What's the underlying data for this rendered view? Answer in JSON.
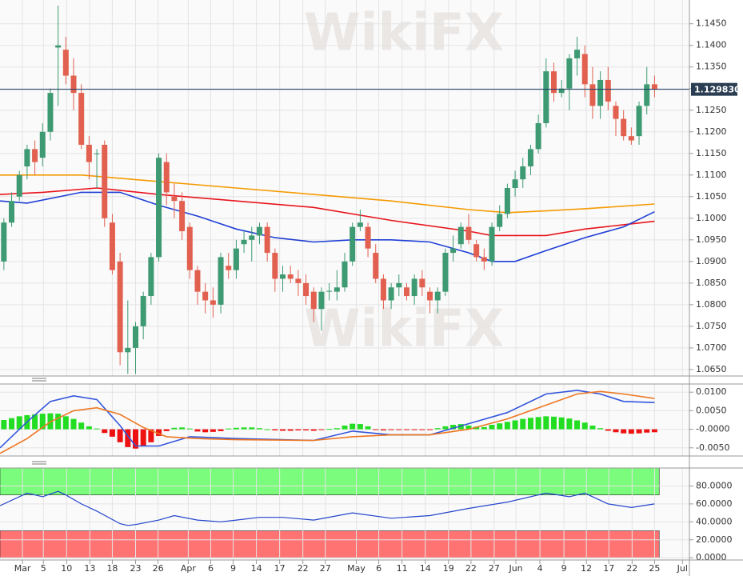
{
  "watermark": "WikiFX",
  "chart_data": [
    {
      "type": "candlestick",
      "xlim": [
        -0.5,
        88.5
      ],
      "ylim": [
        1.0635,
        1.1505
      ],
      "grid": true,
      "up_color": "#3d9a72",
      "down_color": "#e2604f",
      "yticks": [
        {
          "value": 1.065,
          "label": "1.0650"
        },
        {
          "value": 1.07,
          "label": "1.0700"
        },
        {
          "value": 1.075,
          "label": "1.0750"
        },
        {
          "value": 1.08,
          "label": "1.0800"
        },
        {
          "value": 1.085,
          "label": "1.0850"
        },
        {
          "value": 1.09,
          "label": "1.0900"
        },
        {
          "value": 1.095,
          "label": "1.0950"
        },
        {
          "value": 1.1,
          "label": "1.1000"
        },
        {
          "value": 1.105,
          "label": "1.1050"
        },
        {
          "value": 1.11,
          "label": "1.1100"
        },
        {
          "value": 1.115,
          "label": "1.1150"
        },
        {
          "value": 1.12,
          "label": "1.1200"
        },
        {
          "value": 1.125,
          "label": "1.1250"
        },
        {
          "value": 1.13,
          "label": "1.1300"
        },
        {
          "value": 1.135,
          "label": "1.1350"
        },
        {
          "value": 1.14,
          "label": "1.1400"
        },
        {
          "value": 1.145,
          "label": "1.1450"
        }
      ],
      "last_price": {
        "value": 1.12983,
        "label": "1.129830"
      },
      "open": [
        1.09,
        1.099,
        1.105,
        1.112,
        1.116,
        1.114,
        1.12,
        1.1395,
        1.139,
        1.133,
        1.129,
        1.117,
        1.115,
        1.117,
        1.099,
        1.09,
        1.069,
        1.07,
        1.075,
        1.082,
        1.091,
        1.113,
        1.105,
        1.104,
        1.098,
        1.088,
        1.083,
        1.081,
        1.08,
        1.089,
        1.088,
        1.094,
        1.095,
        1.096,
        1.098,
        1.092,
        1.086,
        1.087,
        1.086,
        1.085,
        1.083,
        1.079,
        1.083,
        1.083,
        1.084,
        1.09,
        1.098,
        1.098,
        1.092,
        1.086,
        1.081,
        1.084,
        1.084,
        1.082,
        1.086,
        1.083,
        1.081,
        1.083,
        1.092,
        1.094,
        1.098,
        1.094,
        1.091,
        1.09,
        1.098,
        1.101,
        1.107,
        1.109,
        1.112,
        1.116,
        1.122,
        1.134,
        1.129,
        1.13,
        1.137,
        1.138,
        1.131,
        1.126,
        1.132,
        1.126,
        1.123,
        1.119,
        1.119,
        1.126,
        1.131
      ],
      "high": [
        1.1,
        1.106,
        1.111,
        1.117,
        1.118,
        1.122,
        1.13,
        1.1492,
        1.142,
        1.137,
        1.131,
        1.119,
        1.116,
        1.118,
        1.101,
        1.092,
        1.081,
        1.076,
        1.083,
        1.092,
        1.115,
        1.115,
        1.108,
        1.106,
        1.099,
        1.089,
        1.085,
        1.084,
        1.092,
        1.092,
        1.095,
        1.097,
        1.098,
        1.099,
        1.099,
        1.093,
        1.089,
        1.089,
        1.088,
        1.087,
        1.084,
        1.084,
        1.085,
        1.088,
        1.092,
        1.099,
        1.102,
        1.099,
        1.094,
        1.087,
        1.085,
        1.087,
        1.085,
        1.087,
        1.088,
        1.084,
        1.084,
        1.093,
        1.096,
        1.099,
        1.101,
        1.095,
        1.093,
        1.099,
        1.103,
        1.108,
        1.111,
        1.114,
        1.117,
        1.124,
        1.137,
        1.136,
        1.132,
        1.138,
        1.142,
        1.14,
        1.135,
        1.134,
        1.135,
        1.127,
        1.125,
        1.121,
        1.127,
        1.135,
        1.133
      ],
      "low": [
        1.088,
        1.098,
        1.104,
        1.109,
        1.11,
        1.112,
        1.118,
        1.126,
        1.131,
        1.125,
        1.116,
        1.109,
        1.107,
        1.098,
        1.087,
        1.066,
        1.064,
        1.064,
        1.072,
        1.08,
        1.09,
        1.103,
        1.1,
        1.095,
        1.086,
        1.08,
        1.078,
        1.077,
        1.078,
        1.086,
        1.086,
        1.092,
        1.09,
        1.094,
        1.09,
        1.083,
        1.083,
        1.085,
        1.082,
        1.08,
        1.076,
        1.074,
        1.081,
        1.081,
        1.083,
        1.089,
        1.097,
        1.091,
        1.085,
        1.079,
        1.079,
        1.082,
        1.081,
        1.08,
        1.082,
        1.078,
        1.078,
        1.082,
        1.09,
        1.093,
        1.094,
        1.09,
        1.088,
        1.089,
        1.097,
        1.1,
        1.105,
        1.107,
        1.11,
        1.115,
        1.121,
        1.127,
        1.128,
        1.125,
        1.133,
        1.128,
        1.123,
        1.123,
        1.125,
        1.119,
        1.118,
        1.117,
        1.117,
        1.124,
        1.128
      ],
      "close": [
        1.099,
        1.104,
        1.11,
        1.116,
        1.113,
        1.12,
        1.129,
        1.14,
        1.133,
        1.129,
        1.117,
        1.113,
        1.115,
        1.1,
        1.088,
        1.069,
        1.07,
        1.075,
        1.082,
        1.091,
        1.114,
        1.106,
        1.104,
        1.097,
        1.088,
        1.083,
        1.081,
        1.08,
        1.091,
        1.088,
        1.093,
        1.095,
        1.096,
        1.098,
        1.092,
        1.086,
        1.087,
        1.086,
        1.085,
        1.082,
        1.079,
        1.083,
        1.0832,
        1.084,
        1.09,
        1.098,
        1.099,
        1.093,
        1.086,
        1.081,
        1.084,
        1.085,
        1.082,
        1.086,
        1.084,
        1.081,
        1.083,
        1.092,
        1.093,
        1.098,
        1.095,
        1.091,
        1.09,
        1.098,
        1.101,
        1.107,
        1.109,
        1.112,
        1.116,
        1.122,
        1.134,
        1.129,
        1.13,
        1.137,
        1.139,
        1.131,
        1.126,
        1.132,
        1.127,
        1.123,
        1.119,
        1.118,
        1.126,
        1.131,
        1.1298
      ],
      "series": [
        {
          "color": "#f59a00",
          "x": [
            -0.5,
            10,
            20,
            30,
            40,
            50,
            60,
            65,
            70,
            75,
            80,
            84
          ],
          "values": [
            1.11,
            1.11,
            1.1085,
            1.107,
            1.1055,
            1.104,
            1.102,
            1.1013,
            1.1017,
            1.1022,
            1.1028,
            1.1033
          ]
        },
        {
          "color": "#e8141c",
          "x": [
            -0.5,
            5,
            12,
            20,
            30,
            40,
            50,
            60,
            63,
            70,
            75,
            80,
            84
          ],
          "values": [
            1.1055,
            1.106,
            1.107,
            1.1055,
            1.104,
            1.1025,
            1.0995,
            1.097,
            1.096,
            1.096,
            1.0975,
            1.0985,
            1.0993
          ]
        },
        {
          "color": "#1f3fd6",
          "x": [
            -0.5,
            3,
            10,
            15,
            20,
            25,
            30,
            35,
            40,
            45,
            50,
            55,
            60,
            63,
            66,
            70,
            75,
            80,
            84
          ],
          "values": [
            1.104,
            1.1035,
            1.106,
            1.106,
            1.103,
            1.1005,
            1.0975,
            1.0955,
            1.0945,
            1.095,
            1.095,
            1.0945,
            1.092,
            1.09,
            1.09,
            1.0925,
            1.0955,
            1.098,
            1.1015
          ]
        }
      ]
    },
    {
      "type": "macd",
      "xlim": [
        -0.5,
        88.5
      ],
      "ylim": [
        -0.0072,
        0.0122
      ],
      "grid": true,
      "up_color": "#22dd22",
      "down_color": "#ee1111",
      "yticks": [
        {
          "value": 0.01,
          "label": "0.0100"
        },
        {
          "value": 0.005,
          "label": "0.0050"
        },
        {
          "value": 0,
          "label": "-0.0000"
        },
        {
          "value": -0.005,
          "label": "-0.0050"
        }
      ],
      "values": [
        0.0025,
        0.003,
        0.0035,
        0.0038,
        0.004,
        0.0042,
        0.0043,
        0.0042,
        0.0035,
        0.0028,
        0.0018,
        0.0008,
        0.0002,
        -0.001,
        -0.002,
        -0.0035,
        -0.0048,
        -0.0052,
        -0.0045,
        -0.0035,
        -0.0018,
        -0.0005,
        0.0004,
        0.0005,
        0.0002,
        -0.0006,
        -0.0008,
        -0.0007,
        -0.0005,
        0.0002,
        0.0004,
        0.0005,
        0.0005,
        0.0003,
        0,
        -0.0003,
        -0.0004,
        -0.0004,
        -0.0003,
        -0.0003,
        -0.0004,
        -0.0002,
        0.0001,
        0.0003,
        0.001,
        0.0015,
        0.0014,
        0.0008,
        -0.0001,
        -0.0003,
        -0.0002,
        -0.0002,
        -0.0002,
        -0.0001,
        -0.0001,
        -0.0001,
        0.0003,
        0.0008,
        0.0012,
        0.0014,
        0.001,
        0.0007,
        0.0006,
        0.0012,
        0.0016,
        0.002,
        0.0024,
        0.0028,
        0.0031,
        0.0033,
        0.0035,
        0.0034,
        0.0032,
        0.0029,
        0.0024,
        0.0018,
        0.001,
        0.0003,
        -0.0004,
        -0.0008,
        -0.0011,
        -0.0012,
        -0.0011,
        -0.0009,
        -0.0008
      ],
      "series": [
        {
          "color": "#3355dd",
          "x": [
            -0.5,
            3,
            6,
            9,
            12,
            15,
            17,
            20,
            24,
            30,
            40,
            45,
            50,
            55,
            60,
            65,
            70,
            74,
            77,
            80,
            84
          ],
          "values": [
            -0.005,
            0.002,
            0.0075,
            0.009,
            0.008,
            0.001,
            -0.0045,
            -0.0045,
            -0.002,
            -0.0025,
            -0.003,
            -0.0005,
            -0.0015,
            -0.0015,
            0.0015,
            0.0045,
            0.0095,
            0.0105,
            0.0095,
            0.0075,
            0.0072
          ]
        },
        {
          "color": "#ee7722",
          "x": [
            -0.5,
            3,
            6,
            9,
            12,
            15,
            18,
            21,
            25,
            30,
            40,
            45,
            50,
            55,
            60,
            65,
            70,
            74,
            77,
            80,
            84
          ],
          "values": [
            -0.0065,
            -0.0025,
            0.002,
            0.005,
            0.0058,
            0.004,
            0.0005,
            -0.002,
            -0.0025,
            -0.0028,
            -0.003,
            -0.002,
            -0.0015,
            -0.0015,
            0,
            0.0028,
            0.0065,
            0.0095,
            0.0102,
            0.0095,
            0.0083
          ]
        }
      ]
    },
    {
      "type": "rsi",
      "xlim": [
        -0.5,
        88.5
      ],
      "ylim": [
        -2.5,
        100
      ],
      "grid": true,
      "yticks": [
        {
          "value": 0,
          "label": "0.0000"
        },
        {
          "value": 20,
          "label": "20.0000"
        },
        {
          "value": 40,
          "label": "40.0000"
        },
        {
          "value": 60,
          "label": "60.0000"
        },
        {
          "value": 80,
          "label": "80.0000"
        }
      ],
      "bands": [
        {
          "from": 70,
          "to": 100,
          "color": "#7cfc7c"
        },
        {
          "from": 0,
          "to": 30,
          "color": "#ff7373"
        }
      ],
      "xticks": [
        {
          "value": 2.4,
          "label": "Mar"
        },
        {
          "value": 5.1,
          "label": "5"
        },
        {
          "value": 8.1,
          "label": "10"
        },
        {
          "value": 11.1,
          "label": "13"
        },
        {
          "value": 14,
          "label": "18"
        },
        {
          "value": 17,
          "label": "23"
        },
        {
          "value": 19.9,
          "label": "26"
        },
        {
          "value": 23.8,
          "label": "Apr"
        },
        {
          "value": 26.7,
          "label": "6"
        },
        {
          "value": 29.6,
          "label": "9"
        },
        {
          "value": 32.6,
          "label": "14"
        },
        {
          "value": 35.6,
          "label": "17"
        },
        {
          "value": 38.6,
          "label": "22"
        },
        {
          "value": 41.5,
          "label": "27"
        },
        {
          "value": 45.5,
          "label": "May"
        },
        {
          "value": 48.4,
          "label": "6"
        },
        {
          "value": 51.4,
          "label": "11"
        },
        {
          "value": 54.4,
          "label": "14"
        },
        {
          "value": 57.4,
          "label": "19"
        },
        {
          "value": 60.3,
          "label": "22"
        },
        {
          "value": 63.3,
          "label": "27"
        },
        {
          "value": 66.1,
          "label": "Jun"
        },
        {
          "value": 69.2,
          "label": "4"
        },
        {
          "value": 72.3,
          "label": "9"
        },
        {
          "value": 75.2,
          "label": "12"
        },
        {
          "value": 78.1,
          "label": "17"
        },
        {
          "value": 81.1,
          "label": "22"
        },
        {
          "value": 84,
          "label": "25"
        },
        {
          "value": 87.6,
          "label": "Jul"
        }
      ],
      "series": [
        {
          "color": "#2244cc",
          "x": [
            -0.5,
            3,
            5,
            7,
            8,
            10,
            12,
            15,
            16,
            17,
            20,
            22,
            25,
            28,
            30,
            33,
            36,
            40,
            45,
            50,
            55,
            60,
            65,
            70,
            73,
            75,
            78,
            81,
            84
          ],
          "values": [
            58,
            72,
            68,
            74,
            70,
            60,
            52,
            38,
            36,
            37,
            42,
            47,
            42,
            40,
            42,
            45,
            45,
            42,
            50,
            44,
            47,
            55,
            62,
            72,
            68,
            72,
            60,
            56,
            60
          ]
        }
      ]
    }
  ]
}
